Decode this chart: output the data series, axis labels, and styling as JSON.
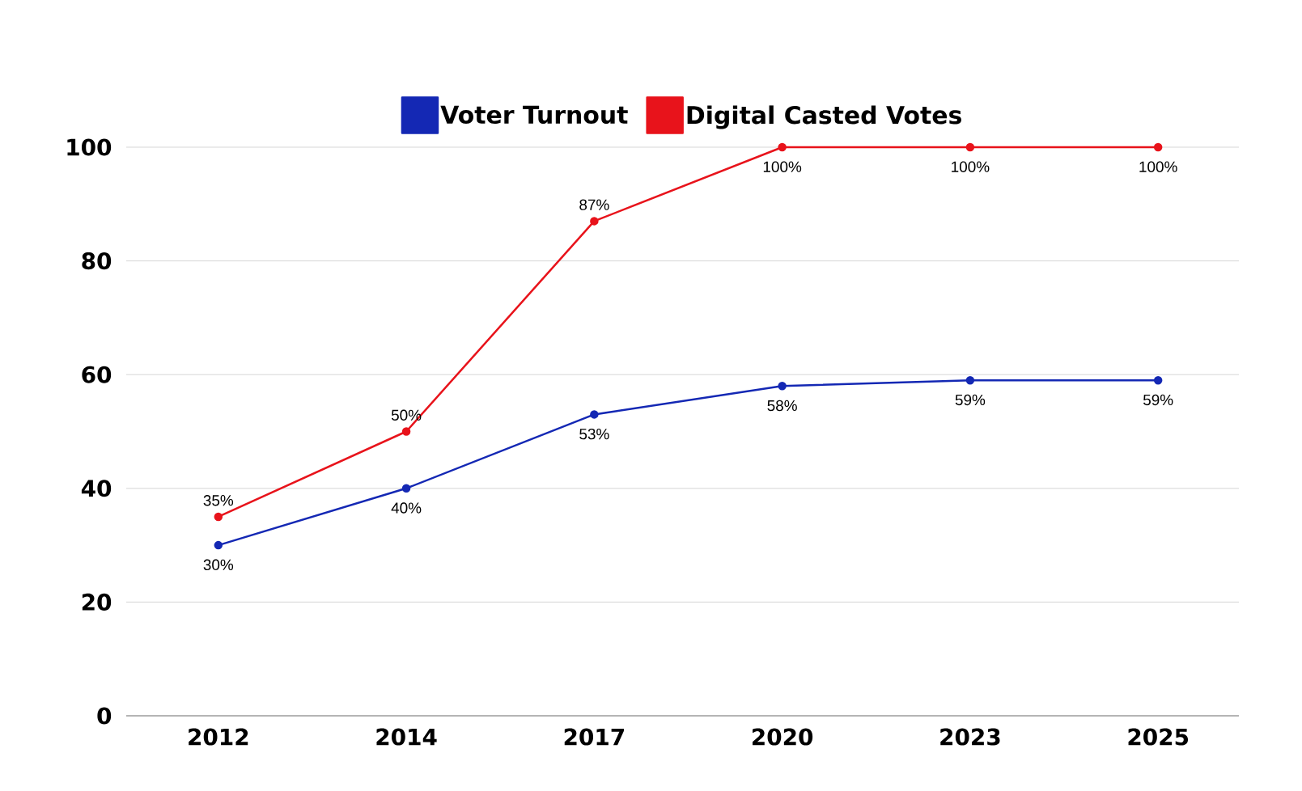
{
  "chart_data": {
    "type": "line",
    "categories": [
      "2012",
      "2014",
      "2017",
      "2020",
      "2023",
      "2025"
    ],
    "series": [
      {
        "name": "Voter Turnout",
        "color": "#1428b4",
        "values": [
          30,
          40,
          53,
          58,
          59,
          59
        ],
        "value_labels": [
          "30%",
          "40%",
          "53%",
          "58%",
          "59%",
          "59%"
        ]
      },
      {
        "name": "Digital Casted Votes",
        "color": "#e8131b",
        "values": [
          35,
          50,
          87,
          100,
          100,
          100
        ],
        "value_labels": [
          "35%",
          "50%",
          "87%",
          "100%",
          "100%",
          "100%"
        ]
      }
    ],
    "ylim": [
      0,
      100
    ],
    "yticks": [
      0,
      20,
      40,
      60,
      80,
      100
    ],
    "grid": "y",
    "legend": "top",
    "marker": "circle",
    "line_style": "solid"
  }
}
